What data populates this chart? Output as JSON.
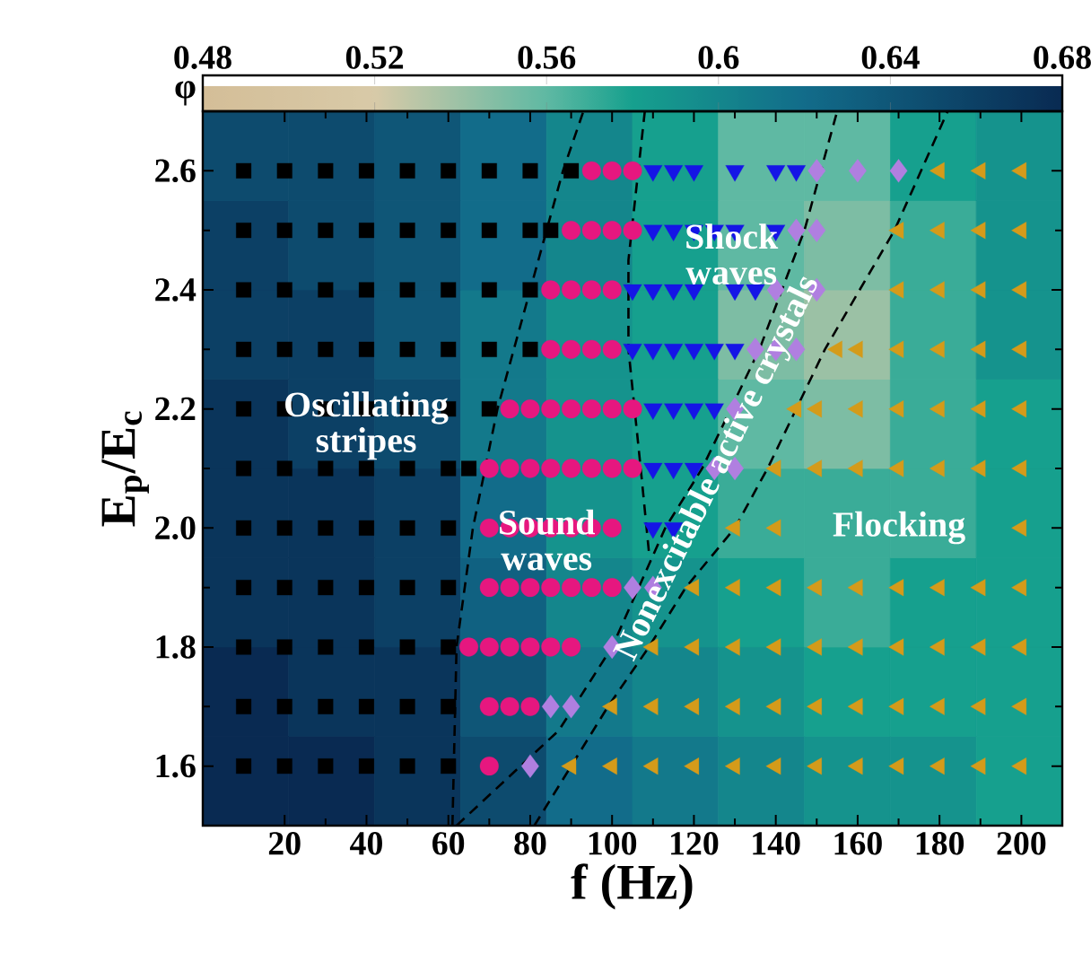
{
  "chart_data": [
    {
      "type": "heatmap",
      "clabel": "φ",
      "clim": [
        0.48,
        0.68
      ],
      "cticks": [
        0.48,
        0.52,
        0.56,
        0.6,
        0.64,
        0.68
      ],
      "tick_labels": false,
      "categories": [
        null,
        null,
        null,
        null,
        null,
        null,
        null,
        null,
        null,
        null
      ],
      "y_categories": [
        null,
        null,
        null,
        null,
        null,
        null,
        null,
        null
      ],
      "cells": [
        [
          0.65,
          0.65,
          0.64,
          0.62,
          0.6,
          0.58,
          0.56,
          0.56,
          0.58,
          0.59
        ],
        [
          0.66,
          0.65,
          0.64,
          0.62,
          0.6,
          0.58,
          0.56,
          0.55,
          0.57,
          0.59
        ],
        [
          0.66,
          0.66,
          0.64,
          0.61,
          0.59,
          0.58,
          0.55,
          0.54,
          0.57,
          0.59
        ],
        [
          0.67,
          0.66,
          0.65,
          0.61,
          0.59,
          0.58,
          0.56,
          0.55,
          0.57,
          0.58
        ],
        [
          0.67,
          0.67,
          0.66,
          0.62,
          0.59,
          0.58,
          0.57,
          0.57,
          0.57,
          0.58
        ],
        [
          0.67,
          0.67,
          0.66,
          0.63,
          0.6,
          0.59,
          0.58,
          0.57,
          0.58,
          0.58
        ],
        [
          0.68,
          0.67,
          0.67,
          0.64,
          0.61,
          0.6,
          0.59,
          0.58,
          0.58,
          0.58
        ],
        [
          0.68,
          0.68,
          0.67,
          0.65,
          0.62,
          0.61,
          0.6,
          0.59,
          0.59,
          0.58
        ]
      ]
    },
    {
      "type": "scatter",
      "xlabel": "f (Hz)",
      "ylabel": "E$_{p}$/E$_{c}$",
      "xlim": [
        0,
        210
      ],
      "ylim": [
        1.5,
        2.7
      ],
      "xticks": [
        20,
        40,
        60,
        80,
        100,
        120,
        140,
        160,
        180,
        200
      ],
      "yticks": [
        1.6,
        1.8,
        {
          "value": 2.0,
          "label": "2.0"
        },
        2.2,
        2.4,
        2.6
      ],
      "grid": false,
      "series": [
        {
          "type": "line",
          "line_style": "dashed",
          "color": "#000000",
          "marker": "none",
          "x": [
            61,
            62,
            66,
            72,
            80,
            88,
            93
          ],
          "values": [
            1.5,
            1.8,
            2.0,
            2.2,
            2.4,
            2.6,
            2.7
          ]
        },
        {
          "type": "line",
          "line_style": "dashed",
          "color": "#000000",
          "marker": "none",
          "x": [
            108,
            104,
            104,
            107,
            109
          ],
          "values": [
            2.7,
            2.45,
            2.3,
            2.1,
            1.96
          ]
        },
        {
          "type": "line",
          "line_style": "dashed",
          "color": "#000000",
          "marker": "none",
          "x": [
            62,
            87,
            100,
            113,
            122,
            136,
            147,
            155
          ],
          "values": [
            1.5,
            1.66,
            1.8,
            2.0,
            2.1,
            2.3,
            2.5,
            2.7
          ]
        },
        {
          "type": "line",
          "line_style": "dashed",
          "color": "#000000",
          "marker": "none",
          "x": [
            81,
            90,
            99,
            109,
            118,
            130,
            138,
            152,
            169,
            182
          ],
          "values": [
            1.5,
            1.6,
            1.7,
            1.8,
            1.9,
            2.0,
            2.1,
            2.3,
            2.5,
            2.7
          ]
        },
        {
          "color": "#000000",
          "marker": "square",
          "x": [
            10,
            20,
            30,
            40,
            50,
            60,
            70,
            80,
            90,
            10,
            20,
            30,
            40,
            50,
            60,
            70,
            80,
            85,
            10,
            20,
            30,
            40,
            50,
            60,
            70,
            80,
            10,
            20,
            30,
            40,
            50,
            60,
            70,
            80,
            10,
            20,
            30,
            40,
            50,
            60,
            70,
            10,
            20,
            30,
            40,
            50,
            60,
            65,
            10,
            20,
            30,
            40,
            50,
            60,
            10,
            20,
            30,
            40,
            50,
            60,
            10,
            20,
            30,
            40,
            50,
            60,
            10,
            20,
            30,
            40,
            50,
            60,
            10,
            20,
            30,
            40,
            50,
            60
          ],
          "values": [
            2.6,
            2.6,
            2.6,
            2.6,
            2.6,
            2.6,
            2.6,
            2.6,
            2.6,
            2.5,
            2.5,
            2.5,
            2.5,
            2.5,
            2.5,
            2.5,
            2.5,
            2.5,
            2.4,
            2.4,
            2.4,
            2.4,
            2.4,
            2.4,
            2.4,
            2.4,
            2.3,
            2.3,
            2.3,
            2.3,
            2.3,
            2.3,
            2.3,
            2.3,
            2.2,
            2.2,
            2.2,
            2.2,
            2.2,
            2.2,
            2.2,
            2.1,
            2.1,
            2.1,
            2.1,
            2.1,
            2.1,
            2.1,
            2.0,
            2.0,
            2.0,
            2.0,
            2.0,
            2.0,
            1.9,
            1.9,
            1.9,
            1.9,
            1.9,
            1.9,
            1.8,
            1.8,
            1.8,
            1.8,
            1.8,
            1.8,
            1.7,
            1.7,
            1.7,
            1.7,
            1.7,
            1.7,
            1.6,
            1.6,
            1.6,
            1.6,
            1.6,
            1.6
          ]
        },
        {
          "color": "#e6177f",
          "marker": "circle",
          "x": [
            95,
            100,
            105,
            90,
            95,
            100,
            105,
            85,
            90,
            95,
            100,
            85,
            90,
            95,
            100,
            75,
            80,
            85,
            90,
            95,
            100,
            105,
            70,
            75,
            80,
            85,
            90,
            95,
            100,
            105,
            70,
            75,
            80,
            85,
            90,
            95,
            100,
            70,
            75,
            80,
            85,
            90,
            95,
            100,
            65,
            70,
            75,
            80,
            85,
            90,
            70,
            75,
            80,
            70
          ],
          "values": [
            2.6,
            2.6,
            2.6,
            2.5,
            2.5,
            2.5,
            2.5,
            2.4,
            2.4,
            2.4,
            2.4,
            2.3,
            2.3,
            2.3,
            2.3,
            2.2,
            2.2,
            2.2,
            2.2,
            2.2,
            2.2,
            2.2,
            2.1,
            2.1,
            2.1,
            2.1,
            2.1,
            2.1,
            2.1,
            2.1,
            2.0,
            2.0,
            2.0,
            2.0,
            2.0,
            2.0,
            2.0,
            1.9,
            1.9,
            1.9,
            1.9,
            1.9,
            1.9,
            1.9,
            1.8,
            1.8,
            1.8,
            1.8,
            1.8,
            1.8,
            1.7,
            1.7,
            1.7,
            1.6
          ]
        },
        {
          "color": "#1515e6",
          "marker": "triangle-down",
          "x": [
            110,
            115,
            120,
            130,
            140,
            145,
            110,
            115,
            120,
            125,
            130,
            140,
            105,
            110,
            115,
            120,
            130,
            135,
            105,
            110,
            115,
            120,
            125,
            130,
            110,
            115,
            120,
            125,
            110,
            115,
            120,
            110,
            115
          ],
          "values": [
            2.6,
            2.6,
            2.6,
            2.6,
            2.6,
            2.6,
            2.5,
            2.5,
            2.5,
            2.5,
            2.5,
            2.5,
            2.4,
            2.4,
            2.4,
            2.4,
            2.4,
            2.4,
            2.3,
            2.3,
            2.3,
            2.3,
            2.3,
            2.3,
            2.2,
            2.2,
            2.2,
            2.2,
            2.1,
            2.1,
            2.1,
            2.0,
            2.0
          ]
        },
        {
          "color": "#b07fe0",
          "marker": "diamond",
          "x": [
            150,
            160,
            170,
            145,
            150,
            140,
            150,
            135,
            140,
            145,
            130,
            125,
            130,
            105,
            110,
            100,
            85,
            90,
            80
          ],
          "values": [
            2.6,
            2.6,
            2.6,
            2.5,
            2.5,
            2.4,
            2.4,
            2.3,
            2.3,
            2.3,
            2.2,
            2.1,
            2.1,
            1.9,
            1.9,
            1.8,
            1.7,
            1.7,
            1.6
          ]
        },
        {
          "color": "#d49b1a",
          "marker": "triangle-left",
          "x": [
            180,
            190,
            200,
            170,
            180,
            190,
            200,
            170,
            180,
            190,
            200,
            155,
            160,
            170,
            180,
            190,
            200,
            145,
            150,
            160,
            170,
            180,
            190,
            200,
            140,
            150,
            160,
            170,
            180,
            190,
            200,
            130,
            140,
            200,
            120,
            130,
            140,
            150,
            160,
            170,
            180,
            190,
            200,
            110,
            120,
            130,
            140,
            150,
            160,
            170,
            180,
            190,
            200,
            100,
            110,
            120,
            130,
            140,
            150,
            160,
            170,
            180,
            190,
            200,
            90,
            100,
            110,
            120,
            130,
            140,
            150,
            160,
            170,
            180,
            190,
            200
          ],
          "values": [
            2.6,
            2.6,
            2.6,
            2.5,
            2.5,
            2.5,
            2.5,
            2.4,
            2.4,
            2.4,
            2.4,
            2.3,
            2.3,
            2.3,
            2.3,
            2.3,
            2.3,
            2.2,
            2.2,
            2.2,
            2.2,
            2.2,
            2.2,
            2.2,
            2.1,
            2.1,
            2.1,
            2.1,
            2.1,
            2.1,
            2.1,
            2.0,
            2.0,
            2.0,
            1.9,
            1.9,
            1.9,
            1.9,
            1.9,
            1.9,
            1.9,
            1.9,
            1.9,
            1.8,
            1.8,
            1.8,
            1.8,
            1.8,
            1.8,
            1.8,
            1.8,
            1.8,
            1.8,
            1.7,
            1.7,
            1.7,
            1.7,
            1.7,
            1.7,
            1.7,
            1.7,
            1.7,
            1.7,
            1.7,
            1.6,
            1.6,
            1.6,
            1.6,
            1.6,
            1.6,
            1.6,
            1.6,
            1.6,
            1.6,
            1.6,
            1.6
          ]
        }
      ],
      "annotations": [
        "Oscillating stripes",
        "Sound waves",
        "Shock waves",
        "Nonexcitable active crystals",
        "Flocking"
      ]
    }
  ]
}
